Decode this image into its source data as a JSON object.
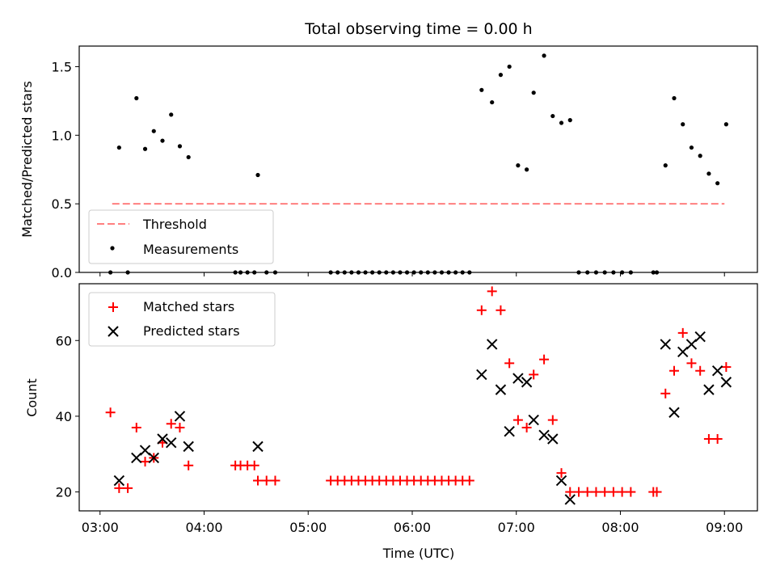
{
  "chart_data": [
    {
      "type": "scatter",
      "title": "Total observing time = 0.00 h",
      "xlabel": "",
      "ylabel": "Matched/Predicted stars",
      "ylim": [
        0,
        1.65
      ],
      "yticks": [
        "0.0",
        "0.5",
        "1.0",
        "1.5"
      ],
      "legend_position": "lower-left",
      "threshold": {
        "name": "Threshold",
        "value": 0.5,
        "x_range": [
          "03:07",
          "09:00"
        ],
        "color": "#ff7f7f",
        "style": "dashed"
      },
      "series": [
        {
          "name": "Measurements",
          "color": "#000000",
          "marker": "dot",
          "points": [
            [
              "03:06",
              0
            ],
            [
              "03:11",
              0.91
            ],
            [
              "03:16",
              0
            ],
            [
              "03:21",
              1.27
            ],
            [
              "03:26",
              0.9
            ],
            [
              "03:31",
              1.03
            ],
            [
              "03:36",
              0.96
            ],
            [
              "03:41",
              1.15
            ],
            [
              "03:46",
              0.92
            ],
            [
              "03:51",
              0.84
            ],
            [
              "04:18",
              0
            ],
            [
              "04:21",
              0
            ],
            [
              "04:25",
              0
            ],
            [
              "04:29",
              0
            ],
            [
              "04:31",
              0.71
            ],
            [
              "04:36",
              0
            ],
            [
              "04:41",
              0
            ],
            [
              "05:13",
              0
            ],
            [
              "05:17",
              0
            ],
            [
              "05:21",
              0
            ],
            [
              "05:25",
              0
            ],
            [
              "05:29",
              0
            ],
            [
              "05:33",
              0
            ],
            [
              "05:37",
              0
            ],
            [
              "05:41",
              0
            ],
            [
              "05:45",
              0
            ],
            [
              "05:49",
              0
            ],
            [
              "05:53",
              0
            ],
            [
              "05:57",
              0
            ],
            [
              "06:01",
              0
            ],
            [
              "06:05",
              0
            ],
            [
              "06:09",
              0
            ],
            [
              "06:13",
              0
            ],
            [
              "06:17",
              0
            ],
            [
              "06:21",
              0
            ],
            [
              "06:25",
              0
            ],
            [
              "06:29",
              0
            ],
            [
              "06:33",
              0
            ],
            [
              "06:40",
              1.33
            ],
            [
              "06:46",
              1.24
            ],
            [
              "06:51",
              1.44
            ],
            [
              "06:56",
              1.5
            ],
            [
              "07:01",
              0.78
            ],
            [
              "07:06",
              0.75
            ],
            [
              "07:10",
              1.31
            ],
            [
              "07:16",
              1.58
            ],
            [
              "07:21",
              1.14
            ],
            [
              "07:26",
              1.09
            ],
            [
              "07:31",
              1.11
            ],
            [
              "07:36",
              0
            ],
            [
              "07:41",
              0
            ],
            [
              "07:46",
              0
            ],
            [
              "07:51",
              0
            ],
            [
              "07:56",
              0
            ],
            [
              "08:01",
              0
            ],
            [
              "08:06",
              0
            ],
            [
              "08:19",
              0
            ],
            [
              "08:21",
              0
            ],
            [
              "08:26",
              0.78
            ],
            [
              "08:31",
              1.27
            ],
            [
              "08:36",
              1.08
            ],
            [
              "08:41",
              0.91
            ],
            [
              "08:46",
              0.85
            ],
            [
              "08:51",
              0.72
            ],
            [
              "08:56",
              0.65
            ],
            [
              "09:01",
              1.08
            ]
          ]
        }
      ]
    },
    {
      "type": "scatter",
      "title": "",
      "xlabel": "Time (UTC)",
      "ylabel": "Count",
      "xlim": [
        "02:48",
        "09:19"
      ],
      "ylim": [
        15,
        75
      ],
      "xticks": [
        "03:00",
        "04:00",
        "05:00",
        "06:00",
        "07:00",
        "08:00",
        "09:00"
      ],
      "yticks": [
        "20",
        "40",
        "60"
      ],
      "legend_position": "upper-left",
      "series": [
        {
          "name": "Matched stars",
          "color": "#ff0000",
          "marker": "plus",
          "points": [
            [
              "03:06",
              41
            ],
            [
              "03:11",
              21
            ],
            [
              "03:16",
              21
            ],
            [
              "03:21",
              37
            ],
            [
              "03:26",
              28
            ],
            [
              "03:31",
              29
            ],
            [
              "03:36",
              33
            ],
            [
              "03:41",
              38
            ],
            [
              "03:46",
              37
            ],
            [
              "03:51",
              27
            ],
            [
              "04:18",
              27
            ],
            [
              "04:21",
              27
            ],
            [
              "04:25",
              27
            ],
            [
              "04:29",
              27
            ],
            [
              "04:31",
              23
            ],
            [
              "04:36",
              23
            ],
            [
              "04:41",
              23
            ],
            [
              "05:13",
              23
            ],
            [
              "05:17",
              23
            ],
            [
              "05:21",
              23
            ],
            [
              "05:25",
              23
            ],
            [
              "05:29",
              23
            ],
            [
              "05:33",
              23
            ],
            [
              "05:37",
              23
            ],
            [
              "05:41",
              23
            ],
            [
              "05:45",
              23
            ],
            [
              "05:49",
              23
            ],
            [
              "05:53",
              23
            ],
            [
              "05:57",
              23
            ],
            [
              "06:01",
              23
            ],
            [
              "06:05",
              23
            ],
            [
              "06:09",
              23
            ],
            [
              "06:13",
              23
            ],
            [
              "06:17",
              23
            ],
            [
              "06:21",
              23
            ],
            [
              "06:25",
              23
            ],
            [
              "06:29",
              23
            ],
            [
              "06:33",
              23
            ],
            [
              "06:40",
              68
            ],
            [
              "06:46",
              73
            ],
            [
              "06:51",
              68
            ],
            [
              "06:56",
              54
            ],
            [
              "07:01",
              39
            ],
            [
              "07:06",
              37
            ],
            [
              "07:10",
              51
            ],
            [
              "07:16",
              55
            ],
            [
              "07:21",
              39
            ],
            [
              "07:26",
              25
            ],
            [
              "07:31",
              20
            ],
            [
              "07:36",
              20
            ],
            [
              "07:41",
              20
            ],
            [
              "07:46",
              20
            ],
            [
              "07:51",
              20
            ],
            [
              "07:56",
              20
            ],
            [
              "08:01",
              20
            ],
            [
              "08:06",
              20
            ],
            [
              "08:19",
              20
            ],
            [
              "08:21",
              20
            ],
            [
              "08:26",
              46
            ],
            [
              "08:31",
              52
            ],
            [
              "08:36",
              62
            ],
            [
              "08:41",
              54
            ],
            [
              "08:46",
              52
            ],
            [
              "08:51",
              34
            ],
            [
              "08:56",
              34
            ],
            [
              "09:01",
              53
            ]
          ]
        },
        {
          "name": "Predicted stars",
          "color": "#000000",
          "marker": "x",
          "points": [
            [
              "03:11",
              23
            ],
            [
              "03:21",
              29
            ],
            [
              "03:26",
              31
            ],
            [
              "03:31",
              29
            ],
            [
              "03:36",
              34
            ],
            [
              "03:41",
              33
            ],
            [
              "03:46",
              40
            ],
            [
              "03:51",
              32
            ],
            [
              "04:31",
              32
            ],
            [
              "06:40",
              51
            ],
            [
              "06:46",
              59
            ],
            [
              "06:51",
              47
            ],
            [
              "06:56",
              36
            ],
            [
              "07:01",
              50
            ],
            [
              "07:06",
              49
            ],
            [
              "07:10",
              39
            ],
            [
              "07:16",
              35
            ],
            [
              "07:21",
              34
            ],
            [
              "07:26",
              23
            ],
            [
              "07:31",
              18
            ],
            [
              "08:26",
              59
            ],
            [
              "08:31",
              41
            ],
            [
              "08:36",
              57
            ],
            [
              "08:41",
              59
            ],
            [
              "08:46",
              61
            ],
            [
              "08:51",
              47
            ],
            [
              "08:56",
              52
            ],
            [
              "09:01",
              49
            ]
          ]
        }
      ]
    }
  ]
}
